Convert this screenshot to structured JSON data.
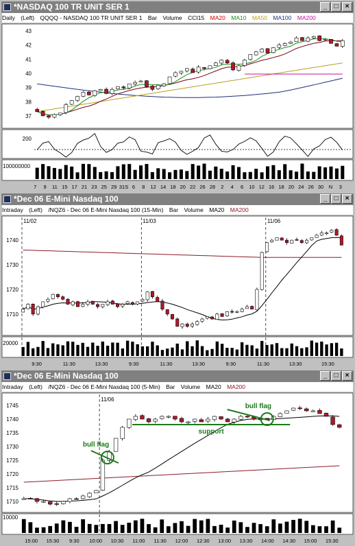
{
  "colors": {
    "up": "#ffffff",
    "down": "#b2182b",
    "ma20": "#1a8c1a",
    "ma10": "#7a0010",
    "ma50": "#b8a020",
    "ma100": "#1c2d7a",
    "ma200": "#c0149e",
    "ma": "#000000",
    "ma200b": "#8b1a2a",
    "ann": "#1a7a1a"
  },
  "windows": [
    {
      "title": "*NASDAQ 100 TR UNIT SER 1",
      "header": {
        "period": "Daily",
        "scale": "(Left)",
        "symbol": "QQQQ - NASDAQ 100 TR UNIT SER 1",
        "type": "Bar",
        "vol": "Volume",
        "ind1": "CCI15",
        "ind2": "MA20",
        "ind3": "MA10",
        "ind4": "MA50",
        "ind5": "MA100",
        "ind6": "MA200"
      },
      "price_labels": [
        "43",
        "42",
        "41",
        "40",
        "39",
        "38",
        "37"
      ],
      "cci_labels": [
        "200"
      ],
      "vol_label": "100000000",
      "x_labels": [
        "7",
        "9",
        "11",
        "15",
        "17",
        "21",
        "23",
        "25",
        "29",
        "31S",
        "6",
        "8",
        "12",
        "14",
        "18",
        "20",
        "22",
        "26",
        "28",
        "2",
        "4",
        "6",
        "10",
        "12",
        "16",
        "18",
        "20",
        "24",
        "26",
        "30",
        "N",
        "3"
      ]
    },
    {
      "title": "*Dec 06  E-Mini Nasdaq 100",
      "header": {
        "period": "Intraday",
        "scale": "(Left)",
        "symbol": "/NQZ6 - Dec 06  E-Mini Nasdaq 100  (15-Min)",
        "type": "Bar",
        "vol": "Volume",
        "ind1": "MA20",
        "ind2": "MA200"
      },
      "session_labels": [
        "11/02",
        "11/03",
        "11/06"
      ],
      "price_labels": [
        "1740",
        "1730",
        "1720",
        "1710"
      ],
      "vol_label": "20000",
      "x_labels": [
        "9:30",
        "11:30",
        "13:30",
        "9:30",
        "11:30",
        "13:30",
        "9:30",
        "11:30",
        "13:30",
        "15:30"
      ]
    },
    {
      "title": "*Dec 06  E-Mini Nasdaq 100",
      "header": {
        "period": "Intraday",
        "scale": "(Left)",
        "symbol": "/NQZ6 - Dec 06  E-Mini Nasdaq 100  (5-Min)",
        "type": "Bar",
        "vol": "Volume",
        "ind1": "MA20",
        "ind2": "MA200"
      },
      "session_labels": [
        "11/06"
      ],
      "price_labels": [
        "1745",
        "1740",
        "1735",
        "1730",
        "1725",
        "1720",
        "1715",
        "1710"
      ],
      "vol_label": "10000",
      "annotations": [
        "bull flag",
        "bull flag",
        "support"
      ],
      "x_labels": [
        "15:00",
        "15:30",
        "9:30",
        "10:00",
        "10:30",
        "11:00",
        "11:30",
        "12:00",
        "12:30",
        "13:00",
        "13:30",
        "14:00",
        "14:30",
        "15:00",
        "15:30"
      ]
    }
  ],
  "chart_data": [
    {
      "type": "candlestick",
      "title": "QQQQ - NASDAQ 100 TR UNIT SER 1",
      "period": "Daily",
      "ylim": [
        36.5,
        43.3
      ],
      "close": [
        37.3,
        37.0,
        36.9,
        37.1,
        37.2,
        37.8,
        38.1,
        38.4,
        38.7,
        38.5,
        38.8,
        38.9,
        38.6,
        38.9,
        39.1,
        39.0,
        39.3,
        39.4,
        39.5,
        39.1,
        38.9,
        39.2,
        39.3,
        39.8,
        40.1,
        40.2,
        40.4,
        40.1,
        40.5,
        40.4,
        40.6,
        40.8,
        41.0,
        40.8,
        40.3,
        40.6,
        41.0,
        41.4,
        41.6,
        41.8,
        41.5,
        41.9,
        42.1,
        42.2,
        42.3,
        42.6,
        42.4,
        42.6,
        42.7,
        42.4,
        42.5,
        42.2,
        42.0,
        42.4
      ],
      "ma_levels": {
        "MA20": [
          37.8,
          42.3
        ],
        "MA10": [
          38.0,
          42.4
        ],
        "MA50": [
          37.3,
          40.8
        ],
        "MA100": [
          39.3,
          39.0
        ],
        "MA200": [
          40.0,
          40.0
        ]
      }
    },
    {
      "type": "candlestick",
      "title": "/NQZ6 - Dec 06 E-Mini Nasdaq 100 (15-Min)",
      "ylim": [
        1703,
        1747
      ],
      "close": [
        1712,
        1714,
        1710,
        1713,
        1715,
        1716,
        1718,
        1717,
        1716,
        1714,
        1715,
        1713,
        1714,
        1715,
        1714,
        1713,
        1714,
        1715,
        1714,
        1713,
        1714,
        1715,
        1714,
        1715,
        1716,
        1719,
        1717,
        1715,
        1712,
        1710,
        1708,
        1705,
        1706,
        1705,
        1706,
        1707,
        1708,
        1709,
        1708,
        1710,
        1709,
        1711,
        1711,
        1711,
        1712,
        1713,
        1712,
        1720,
        1735,
        1739,
        1740,
        1741,
        1740,
        1739,
        1740,
        1740,
        1739,
        1740,
        1741,
        1742,
        1743,
        1743,
        1744,
        1742,
        1738
      ],
      "ma_levels": {
        "MA20": [
          1728,
          1740
        ],
        "MA200": [
          1736,
          1732
        ]
      }
    },
    {
      "type": "candlestick",
      "title": "/NQZ6 - Dec 06 E-Mini Nasdaq 100 (5-Min)",
      "ylim": [
        1707,
        1748
      ],
      "close": [
        1711,
        1711,
        1710,
        1710,
        1709,
        1709,
        1710,
        1711,
        1711,
        1712,
        1713,
        1714,
        1725,
        1728,
        1733,
        1737,
        1740,
        1741,
        1740,
        1739,
        1740,
        1741,
        1741,
        1740,
        1739,
        1739,
        1740,
        1739,
        1740,
        1741,
        1740,
        1739,
        1740,
        1741,
        1741,
        1740,
        1740,
        1740,
        1741,
        1742,
        1743,
        1744,
        1744,
        1743,
        1743,
        1742,
        1741,
        1738,
        1737
      ],
      "support": 1738,
      "ma_levels": {
        "MA20": [
          1708,
          1741
        ],
        "MA200": [
          1717,
          1723
        ]
      }
    }
  ]
}
